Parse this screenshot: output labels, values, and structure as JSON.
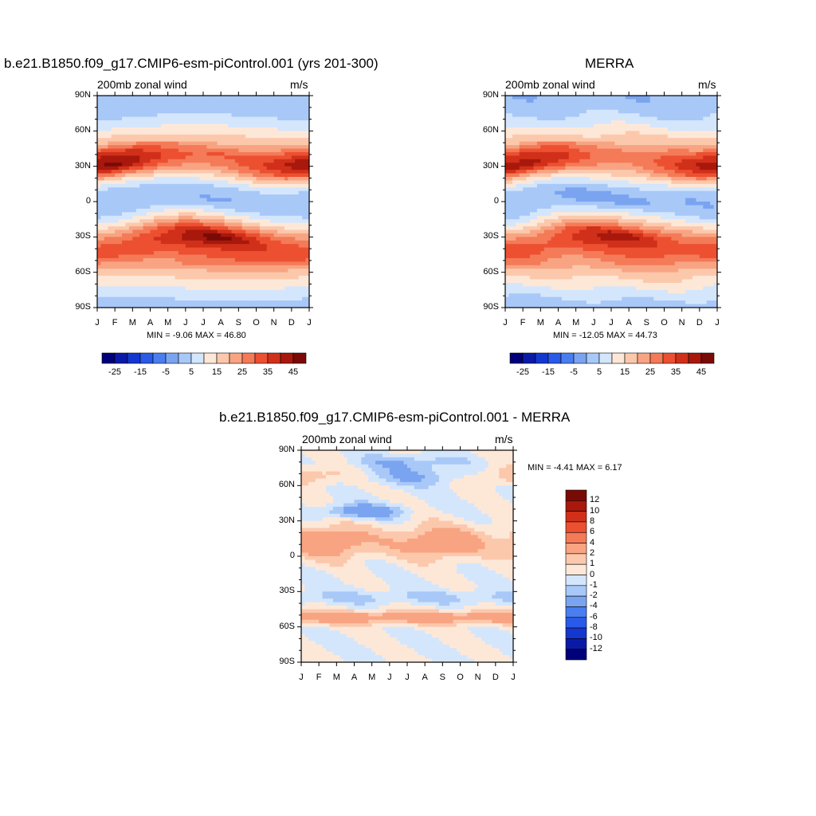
{
  "palette": {
    "model": [
      "#00007a",
      "#0a1aa8",
      "#1437d0",
      "#2a5ae8",
      "#4a7ef0",
      "#7aa4f0",
      "#a8c8f8",
      "#d4e6fc",
      "#fde8d8",
      "#fcc8ac",
      "#f8a482",
      "#f47a58",
      "#ec5030",
      "#d0301a",
      "#a8180c",
      "#7a0a06"
    ],
    "diff": [
      "#00007a",
      "#0a1aa8",
      "#1437d0",
      "#2a5ae8",
      "#4a7ef0",
      "#7aa4f0",
      "#a8c8f8",
      "#d4e6fc",
      "#fde8d8",
      "#fcc8ac",
      "#f8a482",
      "#f47a58",
      "#ec5030",
      "#d0301a",
      "#a8180c",
      "#7a0a06"
    ]
  },
  "chart_data": [
    {
      "type": "heatmap",
      "title": "b.e21.B1850.f09_g17.CMIP6-esm-piControl.001 (yrs 201-300)",
      "left_string": "200mb zonal wind",
      "right_string": "m/s",
      "x_ticks": [
        "J",
        "F",
        "M",
        "A",
        "M",
        "J",
        "J",
        "A",
        "S",
        "O",
        "N",
        "D",
        "J"
      ],
      "y_ticks": [
        "90N",
        "60N",
        "30N",
        "0",
        "30S",
        "60S",
        "90S"
      ],
      "ylim": [
        -90,
        90
      ],
      "min_max_text": "MIN =  -9.06 MAX =  46.80",
      "colorbar_labels": [
        "-25",
        "-15",
        "-5",
        "5",
        "15",
        "25",
        "35",
        "45"
      ],
      "levels": [
        -30,
        -25,
        -20,
        -15,
        -10,
        -5,
        0,
        5,
        10,
        15,
        20,
        25,
        30,
        35,
        40,
        45
      ],
      "profile_lat": [
        -90,
        -75,
        -60,
        -50,
        -42,
        -30,
        -20,
        -10,
        0,
        10,
        20,
        30,
        40,
        50,
        60,
        70,
        80,
        90
      ],
      "profile_month_jan": [
        -4,
        3,
        12,
        22,
        30,
        20,
        8,
        -2,
        -3,
        -2,
        12,
        42,
        35,
        15,
        6,
        0,
        -3,
        -4
      ],
      "profile_month_jul": [
        -3,
        5,
        14,
        24,
        28,
        44,
        22,
        5,
        -6,
        -3,
        8,
        20,
        26,
        14,
        8,
        2,
        -3,
        -4
      ]
    },
    {
      "type": "heatmap",
      "title": "MERRA",
      "left_string": "200mb zonal wind",
      "right_string": "m/s",
      "x_ticks": [
        "J",
        "F",
        "M",
        "A",
        "M",
        "J",
        "J",
        "A",
        "S",
        "O",
        "N",
        "D",
        "J"
      ],
      "y_ticks": [
        "90N",
        "60N",
        "30N",
        "0",
        "30S",
        "60S",
        "90S"
      ],
      "ylim": [
        -90,
        90
      ],
      "min_max_text": "MIN = -12.05 MAX =  44.73",
      "colorbar_labels": [
        "-25",
        "-15",
        "-5",
        "5",
        "15",
        "25",
        "35",
        "45"
      ],
      "levels": [
        -30,
        -25,
        -20,
        -15,
        -10,
        -5,
        0,
        5,
        10,
        15,
        20,
        25,
        30,
        35,
        40,
        45
      ],
      "profile_lat": [
        -90,
        -75,
        -60,
        -50,
        -42,
        -30,
        -20,
        -10,
        0,
        10,
        20,
        30,
        40,
        50,
        60,
        70,
        80,
        90
      ],
      "profile_month_jan": [
        -4,
        3,
        12,
        22,
        28,
        20,
        8,
        -2,
        -4,
        -2,
        12,
        40,
        33,
        15,
        6,
        0,
        -3,
        -4
      ],
      "profile_month_jul": [
        -3,
        5,
        14,
        22,
        26,
        40,
        20,
        5,
        -9,
        -3,
        8,
        20,
        24,
        14,
        8,
        2,
        -3,
        -4
      ]
    },
    {
      "type": "heatmap",
      "title": "b.e21.B1850.f09_g17.CMIP6-esm-piControl.001 - MERRA",
      "left_string": "200mb zonal wind",
      "right_string": "m/s",
      "x_ticks": [
        "J",
        "F",
        "M",
        "A",
        "M",
        "J",
        "J",
        "A",
        "S",
        "O",
        "N",
        "D",
        "J"
      ],
      "y_ticks": [
        "90N",
        "60N",
        "30N",
        "0",
        "30S",
        "60S",
        "90S"
      ],
      "ylim": [
        -90,
        90
      ],
      "min_max_text": "MIN =  -4.41 MAX =   6.17",
      "colorbar_labels": [
        "12",
        "10",
        "8",
        "6",
        "4",
        "2",
        "1",
        "0",
        "-1",
        "-2",
        "-4",
        "-6",
        "-8",
        "-10",
        "-12"
      ],
      "levels": [
        -12,
        -10,
        -8,
        -6,
        -4,
        -2,
        -1,
        0,
        1,
        2,
        4,
        6,
        8,
        10,
        12
      ]
    }
  ]
}
